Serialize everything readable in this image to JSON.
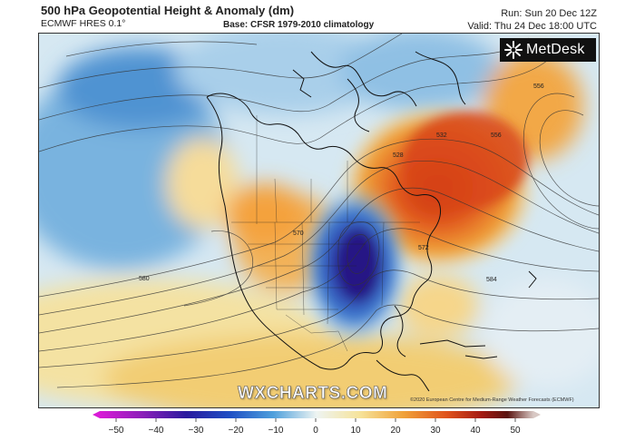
{
  "header": {
    "title": "500 hPa Geopotential Height & Anomaly (dm)",
    "model": "ECMWF HRES 0.1°",
    "base": "Base: CFSR 1979-2010 climatology",
    "run": "Run: Sun 20 Dec 12Z",
    "valid": "Valid: Thu 24 Dec 18:00 UTC"
  },
  "logo": {
    "text": "MetDesk",
    "icon": "metdesk-logo-icon"
  },
  "watermark": "WXCHARTS.COM",
  "copyright": "©2020 European Centre for Medium-Range Weather Forecasts (ECMWF)",
  "contour_labels": [
    "580",
    "584",
    "572",
    "556",
    "532",
    "528",
    "556",
    "570"
  ],
  "colorbar": {
    "min": -50,
    "max": 50,
    "ticks": [
      "−50",
      "−40",
      "−30",
      "−20",
      "−10",
      "0",
      "10",
      "20",
      "30",
      "40",
      "50"
    ],
    "colors": [
      "#d81bd6",
      "#8a1fb8",
      "#2a1a9e",
      "#1f4fc4",
      "#4fa0dc",
      "#cfe6f2",
      "#f6e39a",
      "#f0a23a",
      "#e0531c",
      "#a51a12",
      "#5a1410",
      "#d8c8c4"
    ]
  }
}
